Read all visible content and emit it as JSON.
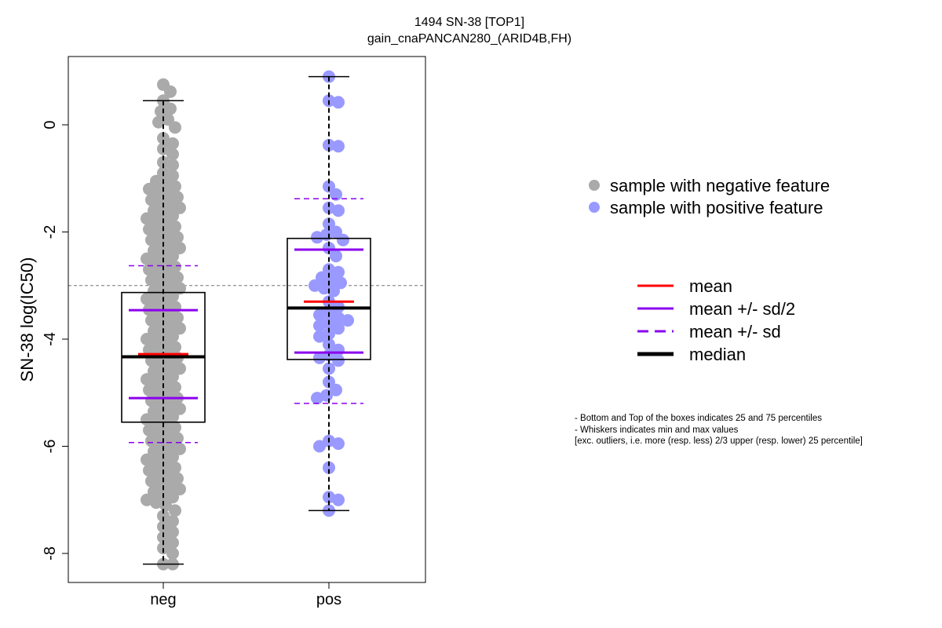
{
  "chart_data": {
    "type": "scatter",
    "title": [
      "1494 SN-38 [TOP1]",
      "gain_cnaPANCAN280_(ARID4B,FH)"
    ],
    "xlabel": "",
    "ylabel": "SN-38 log(IC50)",
    "categories": [
      "neg",
      "pos"
    ],
    "ylim": [
      -8.5,
      1.3
    ],
    "yticks": [
      0,
      -2,
      -4,
      -6,
      -8
    ],
    "reference_line_y": -3.0,
    "colors": {
      "neg": "#aaaaaa",
      "pos": "#9999ff",
      "mean": "#ff0000",
      "sd": "#8b00ee",
      "median": "#000000"
    },
    "groups": [
      {
        "name": "neg",
        "q1": -5.55,
        "median": -4.33,
        "q3": -3.13,
        "whisker_low": -8.2,
        "whisker_high": 0.45,
        "mean": -4.28,
        "mean_minus_half_sd": -5.1,
        "mean_plus_half_sd": -3.46,
        "mean_minus_sd": -5.93,
        "mean_plus_sd": -2.63,
        "points": [
          0.75,
          0.62,
          0.45,
          0.3,
          0.25,
          0.1,
          0.05,
          -0.05,
          -0.25,
          -0.35,
          -0.45,
          -0.55,
          -0.7,
          -0.75,
          -0.9,
          -0.95,
          -1.05,
          -1.1,
          -1.15,
          -1.2,
          -1.25,
          -1.3,
          -1.35,
          -1.4,
          -1.45,
          -1.5,
          -1.55,
          -1.6,
          -1.65,
          -1.7,
          -1.75,
          -1.8,
          -1.85,
          -1.9,
          -1.95,
          -2.0,
          -2.05,
          -2.1,
          -2.15,
          -2.2,
          -2.25,
          -2.3,
          -2.35,
          -2.4,
          -2.45,
          -2.5,
          -2.55,
          -2.6,
          -2.65,
          -2.7,
          -2.75,
          -2.8,
          -2.85,
          -2.9,
          -2.95,
          -3.0,
          -3.05,
          -3.1,
          -3.15,
          -3.2,
          -3.25,
          -3.3,
          -3.35,
          -3.4,
          -3.45,
          -3.5,
          -3.55,
          -3.6,
          -3.65,
          -3.7,
          -3.75,
          -3.8,
          -3.85,
          -3.9,
          -3.95,
          -4.0,
          -4.05,
          -4.1,
          -4.15,
          -4.2,
          -4.25,
          -4.3,
          -4.35,
          -4.4,
          -4.45,
          -4.5,
          -4.55,
          -4.6,
          -4.65,
          -4.7,
          -4.75,
          -4.8,
          -4.85,
          -4.9,
          -4.95,
          -5.0,
          -5.05,
          -5.1,
          -5.15,
          -5.2,
          -5.25,
          -5.3,
          -5.35,
          -5.4,
          -5.45,
          -5.5,
          -5.55,
          -5.6,
          -5.65,
          -5.7,
          -5.75,
          -5.8,
          -5.85,
          -5.9,
          -5.95,
          -6.0,
          -6.05,
          -6.1,
          -6.15,
          -6.2,
          -6.25,
          -6.3,
          -6.35,
          -6.4,
          -6.45,
          -6.5,
          -6.55,
          -6.6,
          -6.65,
          -6.7,
          -6.75,
          -6.8,
          -6.85,
          -6.9,
          -6.95,
          -7.0,
          -7.05,
          -7.1,
          -7.2,
          -7.3,
          -7.4,
          -7.5,
          -7.6,
          -7.7,
          -7.8,
          -7.9,
          -8.0,
          -8.2,
          -8.2
        ]
      },
      {
        "name": "pos",
        "q1": -4.38,
        "median": -3.42,
        "q3": -2.12,
        "whisker_low": -7.2,
        "whisker_high": 0.9,
        "mean": -3.3,
        "mean_minus_half_sd": -4.25,
        "mean_plus_half_sd": -2.33,
        "mean_minus_sd": -5.2,
        "mean_plus_sd": -1.38,
        "points": [
          0.9,
          0.45,
          0.42,
          -0.38,
          -0.4,
          -1.15,
          -1.3,
          -1.55,
          -1.6,
          -1.85,
          -2.0,
          -2.05,
          -2.1,
          -2.15,
          -2.3,
          -2.45,
          -2.7,
          -2.75,
          -2.85,
          -2.9,
          -2.95,
          -3.0,
          -3.05,
          -3.1,
          -3.3,
          -3.4,
          -3.5,
          -3.55,
          -3.6,
          -3.65,
          -3.7,
          -3.75,
          -3.8,
          -3.9,
          -3.95,
          -4.1,
          -4.2,
          -4.3,
          -4.35,
          -4.4,
          -4.55,
          -4.8,
          -4.95,
          -5.05,
          -5.1,
          -5.9,
          -5.95,
          -6.0,
          -6.4,
          -6.95,
          -7.0,
          -7.2
        ]
      }
    ],
    "legend_points": [
      "sample with negative feature",
      "sample with positive feature"
    ],
    "legend_lines": [
      "mean",
      "mean +/- sd/2",
      "mean +/- sd",
      "median"
    ],
    "notes": [
      "- Bottom and Top of the boxes indicates 25 and 75 percentiles",
      "- Whiskers indicates min and max values",
      "[exc. outliers, i.e. more (resp. less) 2/3 upper (resp. lower) 25 percentile]"
    ]
  }
}
